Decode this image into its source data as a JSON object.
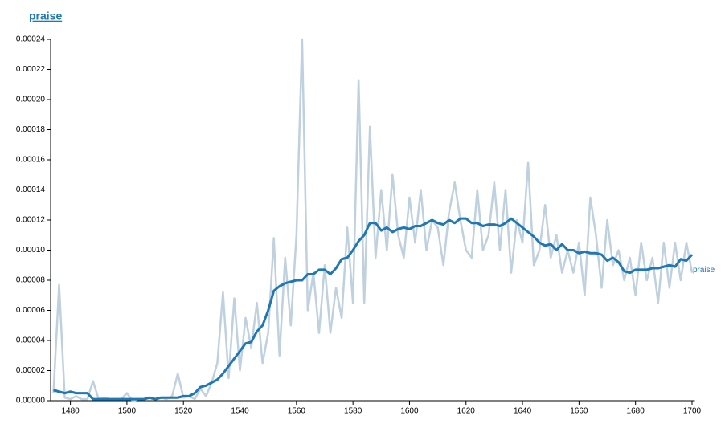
{
  "chart_data": {
    "type": "line",
    "title": "praise",
    "x": [
      1474,
      1476,
      1478,
      1480,
      1482,
      1484,
      1486,
      1488,
      1490,
      1492,
      1494,
      1496,
      1498,
      1500,
      1502,
      1504,
      1506,
      1508,
      1510,
      1512,
      1514,
      1516,
      1518,
      1520,
      1522,
      1524,
      1526,
      1528,
      1530,
      1532,
      1534,
      1536,
      1538,
      1540,
      1542,
      1544,
      1546,
      1548,
      1550,
      1552,
      1554,
      1556,
      1558,
      1560,
      1562,
      1564,
      1566,
      1568,
      1570,
      1572,
      1574,
      1576,
      1578,
      1580,
      1582,
      1584,
      1586,
      1588,
      1590,
      1592,
      1594,
      1596,
      1598,
      1600,
      1602,
      1604,
      1606,
      1608,
      1610,
      1612,
      1614,
      1616,
      1618,
      1620,
      1622,
      1624,
      1626,
      1628,
      1630,
      1632,
      1634,
      1636,
      1638,
      1640,
      1642,
      1644,
      1646,
      1648,
      1650,
      1652,
      1654,
      1656,
      1658,
      1660,
      1662,
      1664,
      1666,
      1668,
      1670,
      1672,
      1674,
      1676,
      1678,
      1680,
      1682,
      1684,
      1686,
      1688,
      1690,
      1692,
      1694,
      1696,
      1698,
      1700
    ],
    "series": [
      {
        "name": "praise",
        "color": "#1f77b4",
        "values": [
          7e-06,
          6e-06,
          5e-06,
          6e-06,
          5e-06,
          5e-06,
          5e-06,
          1e-06,
          1e-06,
          1e-06,
          1e-06,
          1e-06,
          1e-06,
          1e-06,
          1e-06,
          1e-06,
          1e-06,
          2e-06,
          1e-06,
          2e-06,
          2e-06,
          2e-06,
          2e-06,
          3e-06,
          3e-06,
          5e-06,
          9e-06,
          1e-05,
          1.2e-05,
          1.4e-05,
          1.8e-05,
          2.3e-05,
          2.8e-05,
          3.3e-05,
          3.8e-05,
          3.9e-05,
          4.6e-05,
          5e-05,
          6e-05,
          7.3e-05,
          7.6e-05,
          7.8e-05,
          7.9e-05,
          8e-05,
          8e-05,
          8.4e-05,
          8.4e-05,
          8.7e-05,
          8.7e-05,
          8.4e-05,
          8.8e-05,
          9.4e-05,
          9.5e-05,
          0.0001,
          0.000106,
          0.00011,
          0.000118,
          0.000118,
          0.000113,
          0.000115,
          0.000112,
          0.000114,
          0.000115,
          0.000114,
          0.000116,
          0.000116,
          0.000118,
          0.00012,
          0.000118,
          0.000117,
          0.00012,
          0.000118,
          0.000121,
          0.000121,
          0.000118,
          0.000118,
          0.000116,
          0.000117,
          0.000117,
          0.000116,
          0.000118,
          0.000121,
          0.000118,
          0.000115,
          0.000112,
          0.000109,
          0.000105,
          0.000103,
          0.000104,
          0.0001,
          0.000104,
          0.0001,
          0.0001,
          9.8e-05,
          9.9e-05,
          9.8e-05,
          9.8e-05,
          9.7e-05,
          9.3e-05,
          9.5e-05,
          9.2e-05,
          8.6e-05,
          8.5e-05,
          8.7e-05,
          8.7e-05,
          8.7e-05,
          8.8e-05,
          8.8e-05,
          8.9e-05,
          9e-05,
          8.9e-05,
          9.4e-05,
          9.3e-05,
          9.7e-05
        ]
      },
      {
        "color": "#bfd0de",
        "values": [
          5e-06,
          7.7e-05,
          2e-06,
          1e-06,
          3e-06,
          1e-06,
          1e-06,
          1.3e-05,
          1e-06,
          2e-06,
          1e-06,
          1e-06,
          1e-06,
          5e-06,
          0,
          1e-06,
          1e-06,
          2e-06,
          1e-06,
          2e-06,
          1e-06,
          3e-06,
          1.8e-05,
          2e-06,
          3e-06,
          1e-06,
          8e-06,
          3e-06,
          1.2e-05,
          2.5e-05,
          7.2e-05,
          1.5e-05,
          6.8e-05,
          2e-05,
          5.5e-05,
          3.5e-05,
          6.5e-05,
          2.5e-05,
          4.5e-05,
          0.000108,
          3e-05,
          9.5e-05,
          5e-05,
          0.00011,
          0.00024,
          6e-05,
          8.5e-05,
          4.5e-05,
          9e-05,
          4.5e-05,
          7.5e-05,
          5.5e-05,
          0.000115,
          6.5e-05,
          0.000213,
          6.5e-05,
          0.000182,
          9.5e-05,
          0.00014,
          0.0001,
          0.00015,
          0.00011,
          9.5e-05,
          0.000135,
          0.000105,
          0.00014,
          0.0001,
          0.00012,
          0.000115,
          9e-05,
          0.000125,
          0.000145,
          0.00012,
          0.0001,
          9.5e-05,
          0.00014,
          0.0001,
          0.00011,
          0.000145,
          0.0001,
          0.00014,
          8.5e-05,
          0.00012,
          0.000105,
          0.000158,
          9e-05,
          0.0001,
          0.00013,
          9.5e-05,
          0.00011,
          8.5e-05,
          0.0001,
          8.5e-05,
          0.000105,
          7e-05,
          0.000135,
          0.00011,
          7.5e-05,
          0.00012,
          9e-05,
          0.0001,
          8e-05,
          9.5e-05,
          7e-05,
          0.000105,
          8e-05,
          9.5e-05,
          6.5e-05,
          0.000105,
          7.5e-05,
          0.000105,
          8e-05,
          0.000105,
          8.5e-05
        ]
      }
    ],
    "xlim": [
      1473,
      1701
    ],
    "xticks": [
      1480,
      1500,
      1520,
      1540,
      1560,
      1580,
      1600,
      1620,
      1640,
      1660,
      1680,
      1700
    ],
    "ylim": [
      0,
      0.00024
    ],
    "yticks": [
      {
        "value": 0,
        "label": "0.00000"
      },
      2e-05,
      4e-05,
      6e-05,
      8e-05,
      {
        "value": 0.0001,
        "label": "0.00010"
      },
      0.00012,
      0.00014,
      0.00016,
      0.00018,
      {
        "value": 0.0002,
        "label": "0.00020"
      },
      0.00022,
      0.00024
    ]
  }
}
